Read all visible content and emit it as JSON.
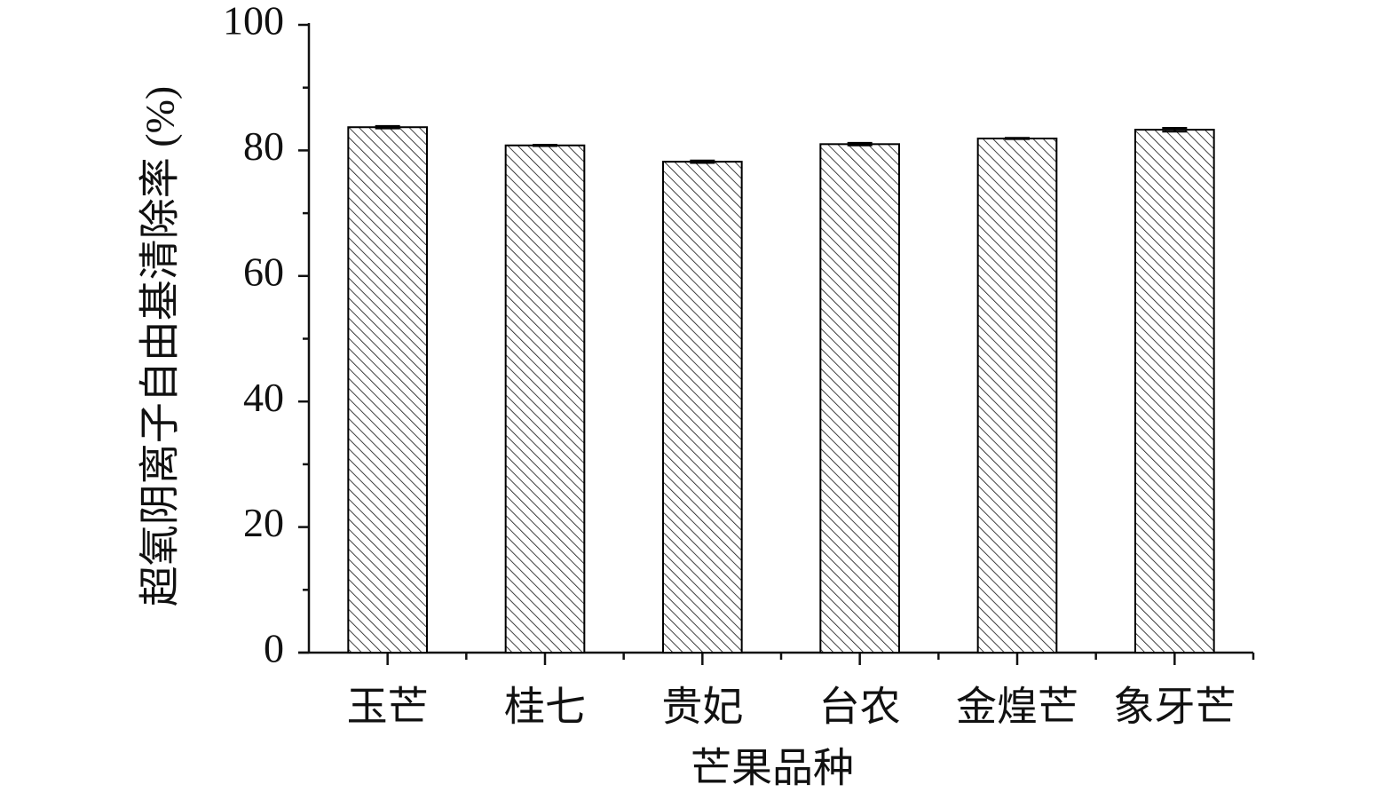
{
  "chart_data": {
    "type": "bar",
    "categories": [
      "玉芒",
      "桂七",
      "贵妃",
      "台农",
      "金煌芒",
      "象牙芒"
    ],
    "values": [
      83.7,
      80.8,
      78.2,
      81.0,
      81.9,
      83.3
    ],
    "errors": [
      0.2,
      0.1,
      0.2,
      0.2,
      0.1,
      0.3
    ],
    "color": "#000000",
    "xlabel": "芒果品种",
    "ylabel": "超氧阴离子自由基清除率 (%)",
    "ylim": [
      0,
      100
    ],
    "yticks": [
      0,
      20,
      40,
      60,
      80,
      100
    ]
  }
}
